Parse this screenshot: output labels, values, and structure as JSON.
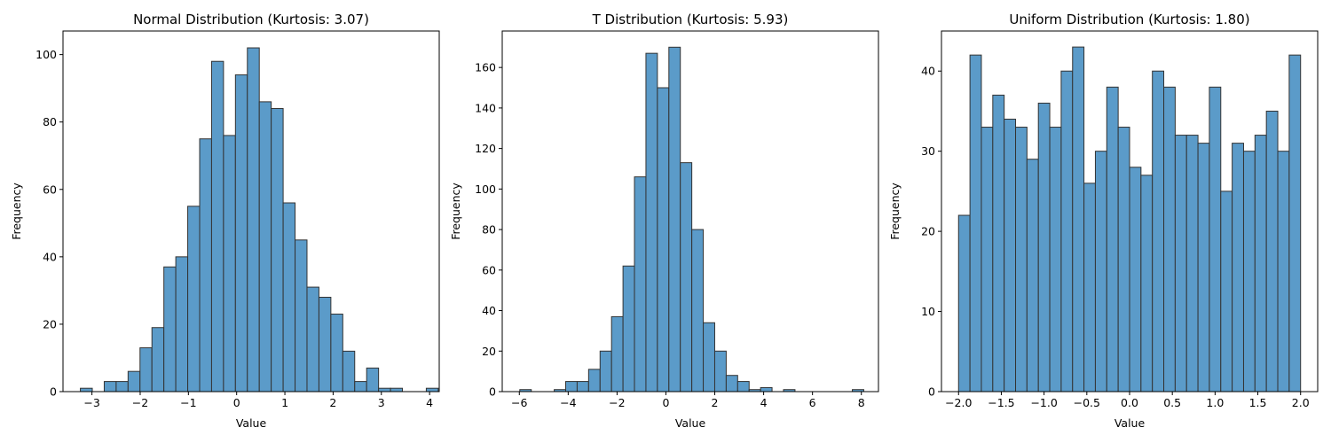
{
  "chart_data": [
    {
      "type": "bar",
      "title": "Normal Distribution (Kurtosis: 3.07)",
      "xlabel": "Value",
      "ylabel": "Frequency",
      "xlim": [
        -3.6,
        4.2
      ],
      "ylim": [
        0,
        107
      ],
      "xticks": [
        -3,
        -2,
        -1,
        0,
        1,
        2,
        3,
        4
      ],
      "xtick_labels": [
        "−3",
        "−2",
        "−1",
        "0",
        "1",
        "2",
        "3",
        "4"
      ],
      "yticks": [
        0,
        20,
        40,
        60,
        80,
        100
      ],
      "ytick_labels": [
        "0",
        "20",
        "40",
        "60",
        "80",
        "100"
      ],
      "grid": false,
      "bin_start": -3.24,
      "bin_width": 0.2473,
      "values": [
        1,
        0,
        3,
        3,
        6,
        13,
        19,
        37,
        40,
        55,
        75,
        98,
        76,
        94,
        102,
        86,
        84,
        56,
        45,
        31,
        28,
        23,
        12,
        3,
        7,
        1,
        1,
        0,
        0,
        1
      ],
      "bar_color": "#5b9bc9",
      "edge_color": "#333333"
    },
    {
      "type": "bar",
      "title": "T Distribution (Kurtosis: 5.93)",
      "xlabel": "Value",
      "ylabel": "Frequency",
      "xlim": [
        -6.7,
        8.7
      ],
      "ylim": [
        0,
        178
      ],
      "xticks": [
        -6,
        -4,
        -2,
        0,
        2,
        4,
        6,
        8
      ],
      "xtick_labels": [
        "−6",
        "−4",
        "−2",
        "0",
        "2",
        "4",
        "6",
        "8"
      ],
      "yticks": [
        0,
        20,
        40,
        60,
        80,
        100,
        120,
        140,
        160
      ],
      "ytick_labels": [
        "0",
        "20",
        "40",
        "60",
        "80",
        "100",
        "120",
        "140",
        "160"
      ],
      "grid": false,
      "bin_start": -5.98,
      "bin_width": 0.4693,
      "values": [
        1,
        0,
        0,
        1,
        5,
        5,
        11,
        20,
        37,
        62,
        106,
        167,
        150,
        170,
        113,
        80,
        34,
        20,
        8,
        5,
        1,
        2,
        0,
        1,
        0,
        0,
        0,
        0,
        0,
        1
      ],
      "bar_color": "#5b9bc9",
      "edge_color": "#333333"
    },
    {
      "type": "bar",
      "title": "Uniform Distribution (Kurtosis: 1.80)",
      "xlabel": "Value",
      "ylabel": "Frequency",
      "xlim": [
        -2.2,
        2.2
      ],
      "ylim": [
        0,
        45
      ],
      "xticks": [
        -2.0,
        -1.5,
        -1.0,
        -0.5,
        0.0,
        0.5,
        1.0,
        1.5,
        2.0
      ],
      "xtick_labels": [
        "−2.0",
        "−1.5",
        "−1.0",
        "−0.5",
        "0.0",
        "0.5",
        "1.0",
        "1.5",
        "2.0"
      ],
      "yticks": [
        0,
        10,
        20,
        30,
        40
      ],
      "ytick_labels": [
        "0",
        "10",
        "20",
        "30",
        "40"
      ],
      "grid": false,
      "bin_start": -2.0,
      "bin_width": 0.13333,
      "values": [
        22,
        42,
        33,
        37,
        34,
        33,
        29,
        36,
        33,
        40,
        43,
        26,
        30,
        38,
        33,
        28,
        27,
        40,
        38,
        32,
        32,
        31,
        38,
        25,
        31,
        30,
        32,
        35,
        30,
        42
      ],
      "bar_color": "#5b9bc9",
      "edge_color": "#333333"
    }
  ]
}
